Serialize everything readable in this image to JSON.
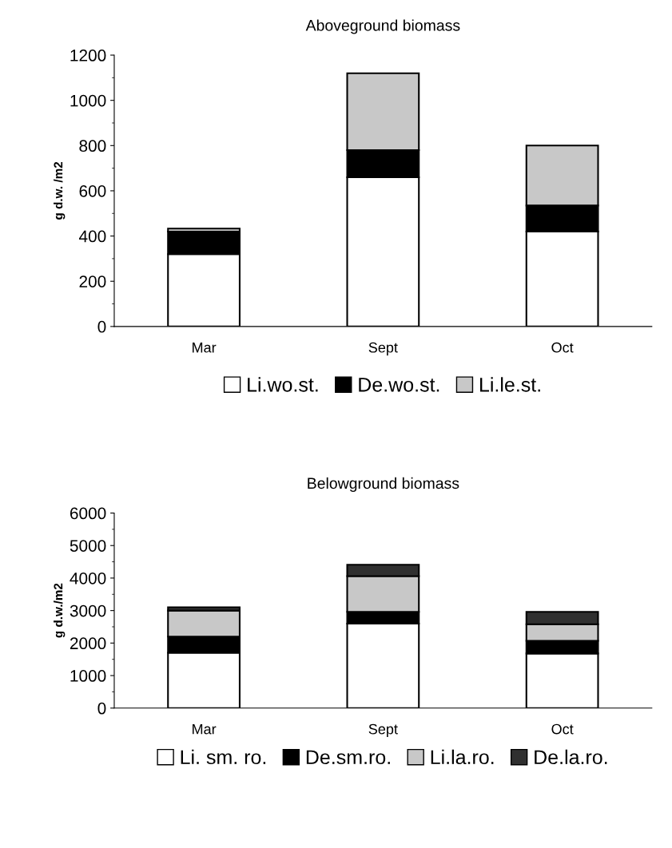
{
  "chart_data": [
    {
      "type": "bar",
      "title": "Aboveground biomass",
      "ylabel": "g d.w. /m2",
      "categories": [
        "Mar",
        "Sept",
        "Oct"
      ],
      "stacked": true,
      "legend": "bottom",
      "grid": false,
      "ylim": [
        0,
        1200
      ],
      "yticks": [
        0,
        200,
        400,
        600,
        800,
        1000,
        1200
      ],
      "series": [
        {
          "name": "Li.wo.st.",
          "color": "#ffffff",
          "values": [
            320,
            660,
            420
          ]
        },
        {
          "name": "De.wo.st.",
          "color": "#000000",
          "values": [
            100,
            120,
            115
          ]
        },
        {
          "name": "Li.le.st.",
          "color": "#c8c8c8",
          "values": [
            13,
            340,
            265
          ]
        }
      ]
    },
    {
      "type": "bar",
      "title": "Belowground biomass",
      "ylabel": "g d.w./m2",
      "categories": [
        "Mar",
        "Sept",
        "Oct"
      ],
      "stacked": true,
      "legend": "bottom",
      "grid": false,
      "ylim": [
        0,
        6000
      ],
      "yticks": [
        0,
        1000,
        2000,
        3000,
        4000,
        5000,
        6000
      ],
      "series": [
        {
          "name": "Li. sm. ro.",
          "color": "#ffffff",
          "values": [
            1700,
            2600,
            1680
          ]
        },
        {
          "name": "De.sm.ro.",
          "color": "#000000",
          "values": [
            500,
            360,
            390
          ]
        },
        {
          "name": "Li.la.ro.",
          "color": "#c8c8c8",
          "values": [
            800,
            1100,
            510
          ]
        },
        {
          "name": "De.la.ro.",
          "color": "#303030",
          "values": [
            100,
            350,
            380
          ]
        }
      ]
    }
  ]
}
